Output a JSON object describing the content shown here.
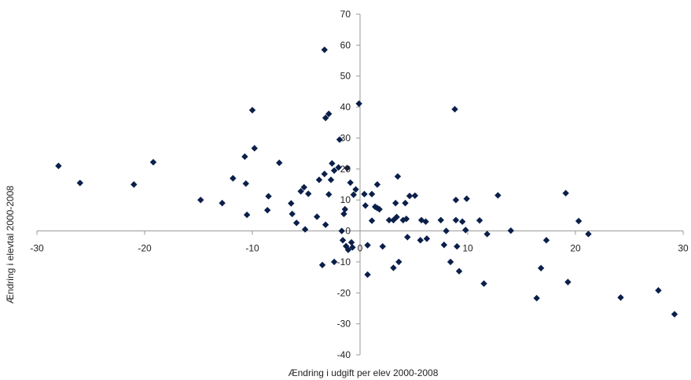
{
  "chart_data": {
    "type": "scatter",
    "title": "",
    "xlabel": "Ændring i udgift per elev 2000-2008",
    "ylabel": "Ændring i elevtal 2000-2008",
    "xlim": [
      -30,
      30
    ],
    "ylim": [
      -40,
      70
    ],
    "xticks": [
      -30,
      -20,
      -10,
      0,
      10,
      20,
      30
    ],
    "yticks": [
      -40,
      -30,
      -20,
      -10,
      0,
      10,
      20,
      30,
      40,
      50,
      60,
      70
    ],
    "grid": false,
    "legend": "none",
    "marker": "diamond",
    "marker_color": "#0b1f4a",
    "series": [
      {
        "points": [
          [
            -28.0,
            21.0
          ],
          [
            -26.0,
            15.5
          ],
          [
            -21.0,
            15.0
          ],
          [
            -19.2,
            22.2
          ],
          [
            -14.8,
            10.0
          ],
          [
            -12.8,
            9.0
          ],
          [
            -11.8,
            17.0
          ],
          [
            -10.7,
            24.0
          ],
          [
            -10.6,
            15.3
          ],
          [
            -10.5,
            5.2
          ],
          [
            -10.0,
            39.0
          ],
          [
            -9.8,
            26.7
          ],
          [
            -8.5,
            11.2
          ],
          [
            -8.6,
            6.7
          ],
          [
            -7.5,
            22.0
          ],
          [
            -6.4,
            8.9
          ],
          [
            -6.3,
            5.5
          ],
          [
            -5.9,
            2.6
          ],
          [
            -5.5,
            12.8
          ],
          [
            -5.2,
            14.1
          ],
          [
            -5.1,
            0.5
          ],
          [
            -4.8,
            12.0
          ],
          [
            -4.0,
            4.6
          ],
          [
            -3.8,
            16.5
          ],
          [
            -3.5,
            -11.0
          ],
          [
            -3.3,
            18.4
          ],
          [
            -3.3,
            58.5
          ],
          [
            -3.2,
            36.5
          ],
          [
            -3.2,
            2.0
          ],
          [
            -2.9,
            37.8
          ],
          [
            -2.9,
            11.8
          ],
          [
            -2.7,
            16.5
          ],
          [
            -2.6,
            21.8
          ],
          [
            -2.4,
            19.5
          ],
          [
            -2.4,
            -10.0
          ],
          [
            -2.0,
            20.5
          ],
          [
            -1.9,
            29.5
          ],
          [
            -1.7,
            0.0
          ],
          [
            -1.6,
            -3.0
          ],
          [
            -1.5,
            5.5
          ],
          [
            -1.4,
            7.0
          ],
          [
            -1.3,
            -4.9
          ],
          [
            -1.2,
            20.3
          ],
          [
            -1.1,
            -6.1
          ],
          [
            -0.9,
            15.6
          ],
          [
            -0.8,
            -3.7
          ],
          [
            -0.7,
            -5.3
          ],
          [
            -0.6,
            11.7
          ],
          [
            -0.4,
            13.4
          ],
          [
            -0.1,
            41.1
          ],
          [
            0.4,
            11.9
          ],
          [
            0.5,
            8.2
          ],
          [
            0.7,
            -4.6
          ],
          [
            0.7,
            -14.1
          ],
          [
            1.1,
            11.9
          ],
          [
            1.1,
            3.3
          ],
          [
            1.4,
            7.8
          ],
          [
            1.6,
            7.4
          ],
          [
            1.6,
            15.0
          ],
          [
            1.8,
            7.0
          ],
          [
            2.1,
            -5.0
          ],
          [
            2.7,
            3.5
          ],
          [
            3.1,
            3.5
          ],
          [
            3.1,
            -11.9
          ],
          [
            3.3,
            9.0
          ],
          [
            3.4,
            4.5
          ],
          [
            3.5,
            17.6
          ],
          [
            3.6,
            -10.0
          ],
          [
            4.0,
            3.5
          ],
          [
            4.2,
            9.0
          ],
          [
            4.3,
            3.9
          ],
          [
            4.4,
            -2.0
          ],
          [
            4.6,
            11.3
          ],
          [
            5.1,
            11.4
          ],
          [
            5.6,
            -3.0
          ],
          [
            5.7,
            3.5
          ],
          [
            6.1,
            3.0
          ],
          [
            6.2,
            -2.5
          ],
          [
            7.5,
            3.5
          ],
          [
            7.8,
            -4.5
          ],
          [
            8.0,
            0.0
          ],
          [
            8.4,
            -10.0
          ],
          [
            8.8,
            39.3
          ],
          [
            8.9,
            10.0
          ],
          [
            8.9,
            3.5
          ],
          [
            9.0,
            -5.0
          ],
          [
            9.2,
            -13.0
          ],
          [
            9.5,
            3.0
          ],
          [
            9.8,
            0.3
          ],
          [
            9.9,
            10.4
          ],
          [
            11.1,
            3.4
          ],
          [
            11.5,
            -17.0
          ],
          [
            11.8,
            -1.0
          ],
          [
            12.8,
            11.5
          ],
          [
            14.0,
            0.1
          ],
          [
            16.4,
            -21.7
          ],
          [
            16.8,
            -12.0
          ],
          [
            17.3,
            -3.0
          ],
          [
            19.1,
            12.2
          ],
          [
            19.3,
            -16.5
          ],
          [
            20.3,
            3.2
          ],
          [
            21.2,
            -1.0
          ],
          [
            24.2,
            -21.5
          ],
          [
            27.7,
            -19.2
          ],
          [
            29.2,
            -26.9
          ]
        ]
      }
    ]
  }
}
